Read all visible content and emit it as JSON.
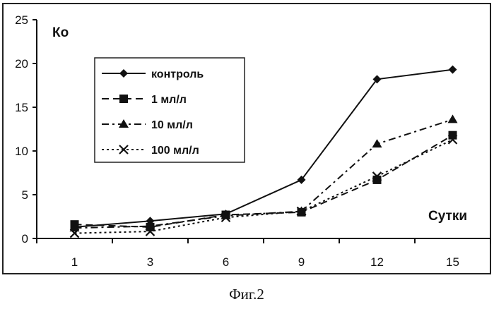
{
  "chart_data": {
    "type": "line",
    "x": [
      "1",
      "3",
      "6",
      "9",
      "12",
      "15"
    ],
    "ylim": [
      0,
      25
    ],
    "yticks": [
      "0",
      "5",
      "10",
      "15",
      "20",
      "25"
    ],
    "ylabel": "Ко",
    "xlabel": "Сутки",
    "grid": false,
    "legend_position": "top-left",
    "series": [
      {
        "name": "контроль",
        "values": [
          1.3,
          2.0,
          2.8,
          6.7,
          18.2,
          19.3
        ],
        "marker": "diamond",
        "dash": "solid"
      },
      {
        "name": "1 мл/л",
        "values": [
          1.6,
          1.3,
          2.7,
          3.0,
          6.7,
          11.8
        ],
        "marker": "square",
        "dash": "dashed"
      },
      {
        "name": "10 мл/л",
        "values": [
          1.2,
          1.4,
          2.6,
          3.1,
          10.8,
          13.6
        ],
        "marker": "triangle",
        "dash": "dash-dot"
      },
      {
        "name": "100 мл/л",
        "values": [
          0.6,
          0.8,
          2.4,
          3.1,
          7.1,
          11.3
        ],
        "marker": "cross",
        "dash": "dotted"
      }
    ]
  },
  "caption": "Фиг.2"
}
